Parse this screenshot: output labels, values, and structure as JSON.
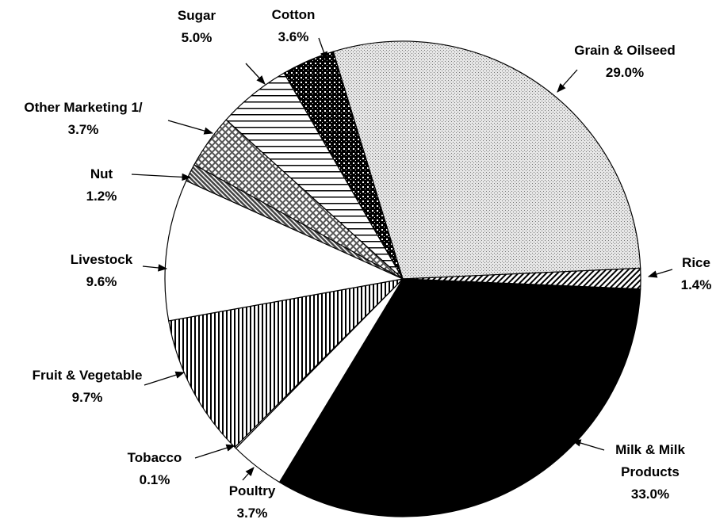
{
  "chart_data": {
    "type": "pie",
    "categories": [
      "Grain & Oilseed",
      "Rice",
      "Milk & Milk Products",
      "Poultry",
      "Tobacco",
      "Fruit & Vegetable",
      "Livestock",
      "Nut",
      "Other Marketing 1/",
      "Sugar",
      "Cotton"
    ],
    "values": [
      29.0,
      1.4,
      33.0,
      3.7,
      0.1,
      9.7,
      9.6,
      1.2,
      3.7,
      5.0,
      3.6
    ],
    "value_labels": [
      "29.0%",
      "1.4%",
      "33.0%",
      "3.7%",
      "0.1%",
      "9.7%",
      "9.6%",
      "1.2%",
      "3.7%",
      "5.0%",
      "3.6%"
    ],
    "colors": [
      "url(#p-dots)",
      "url(#p-diag)",
      "#000000",
      "#ffffff",
      "#ffffff",
      "url(#p-vert)",
      "#ffffff",
      "url(#p-dark)",
      "url(#p-cross)",
      "url(#p-horiz)",
      "url(#p-check)"
    ]
  }
}
